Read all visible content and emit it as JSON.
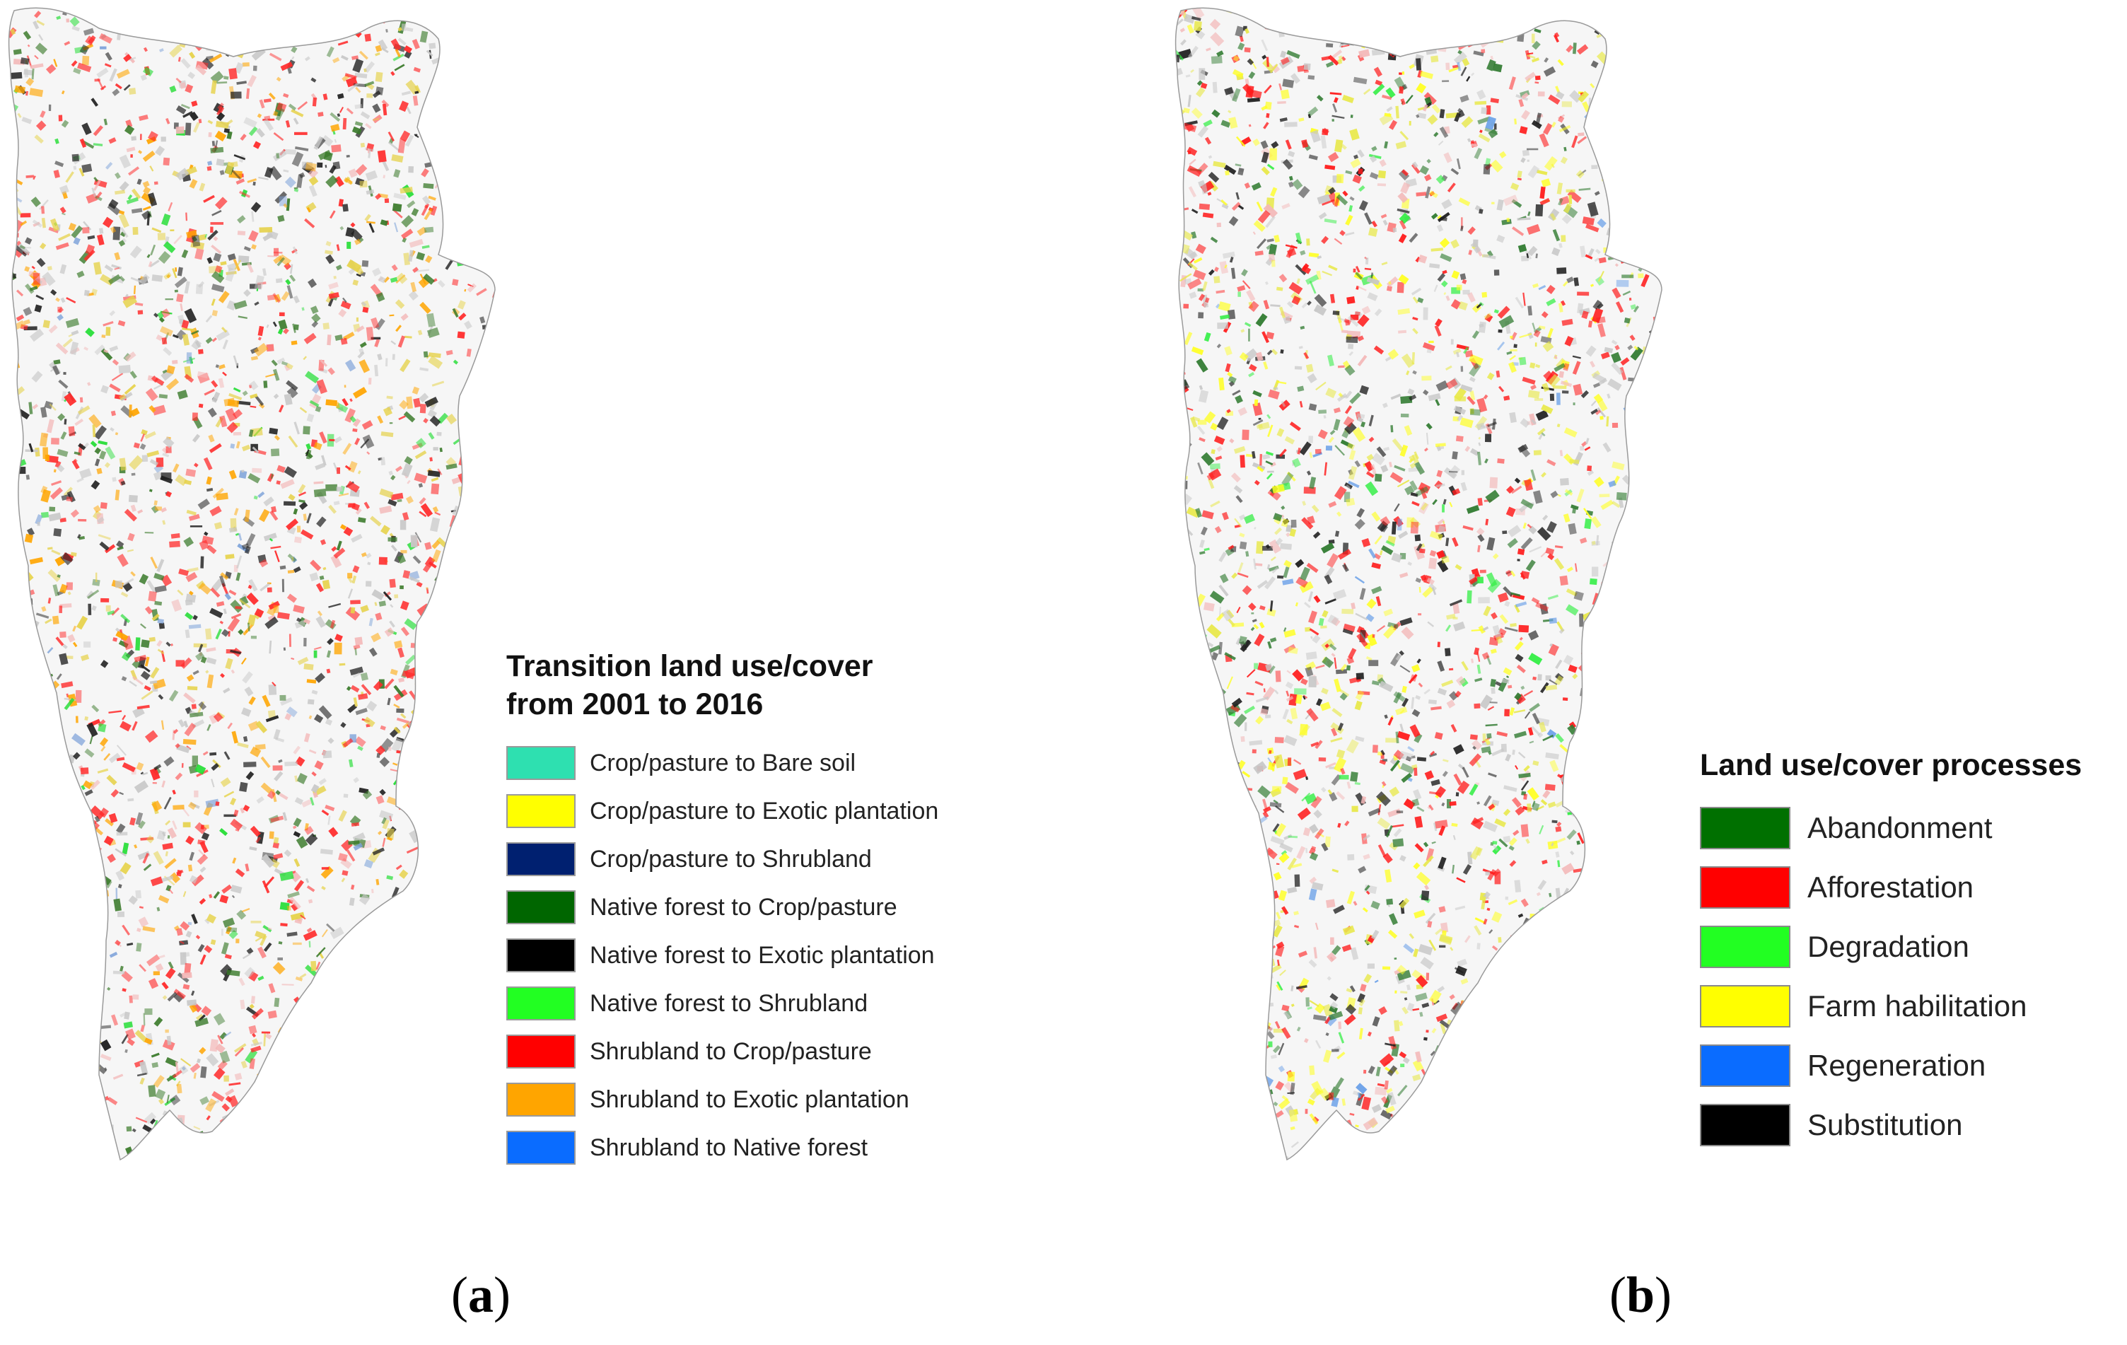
{
  "panel_a": {
    "label_open": "(",
    "label_letter": "a",
    "label_close": ")",
    "legend": {
      "title_line1": "Transition land use/cover",
      "title_line2": "from 2001 to 2016",
      "items": [
        {
          "label": "Crop/pasture to Bare soil",
          "color": "#2ee0b0"
        },
        {
          "label": "Crop/pasture to Exotic plantation",
          "color": "#ffff00"
        },
        {
          "label": "Crop/pasture to Shrubland",
          "color": "#002070"
        },
        {
          "label": "Native forest to Crop/pasture",
          "color": "#006600"
        },
        {
          "label": "Native forest to Exotic plantation",
          "color": "#000000"
        },
        {
          "label": "Native forest to Shrubland",
          "color": "#22ff22"
        },
        {
          "label": "Shrubland to Crop/pasture",
          "color": "#ff0000"
        },
        {
          "label": "Shrubland to Exotic plantation",
          "color": "#ffa500"
        },
        {
          "label": "Shrubland to Native forest",
          "color": "#0a6cff"
        }
      ]
    }
  },
  "panel_b": {
    "label_open": "(",
    "label_letter": "b",
    "label_close": ")",
    "legend": {
      "title": "Land use/cover processes",
      "items": [
        {
          "label": "Abandonment",
          "color": "#007000"
        },
        {
          "label": "Afforestation",
          "color": "#ff0000"
        },
        {
          "label": "Degradation",
          "color": "#22ff22"
        },
        {
          "label": "Farm habilitation",
          "color": "#ffff00"
        },
        {
          "label": "Regeneration",
          "color": "#0a6cff"
        },
        {
          "label": "Substitution",
          "color": "#000000"
        }
      ]
    }
  },
  "map_palette": {
    "panel_a": [
      "#ff2a2a",
      "#ffa500",
      "#e6d24a",
      "#3a7a2a",
      "#22dd33",
      "#1e1e1e",
      "#c8c8c8",
      "#f3b8b8",
      "#7aa0d8"
    ],
    "panel_b": [
      "#ff1a1a",
      "#ffff22",
      "#e8e84a",
      "#2f7a2f",
      "#33ee44",
      "#1e1e1e",
      "#c8c8c8",
      "#f3b8b8",
      "#6aa0e8"
    ]
  }
}
